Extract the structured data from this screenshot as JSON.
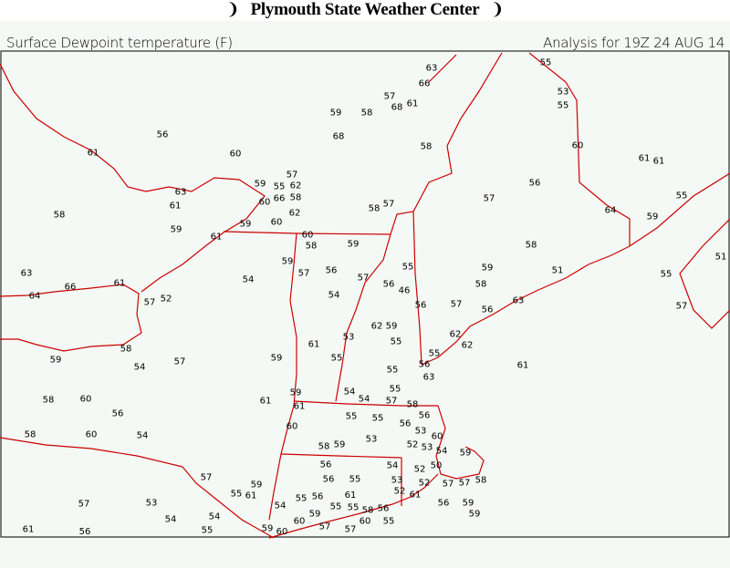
{
  "header": {
    "title": "Plymouth State Weather Center",
    "logo_icon": "tornado-icon"
  },
  "map": {
    "parameter_label": "Surface Dewpoint temperature (F)",
    "analysis_label": "Analysis for 19Z 24 AUG 14",
    "border_color": "#cc0000",
    "background_color": "#f4f9f5",
    "station_values": [
      63,
      66,
      57,
      68,
      61,
      59,
      58,
      68,
      58,
      56,
      60,
      61,
      55,
      53,
      55,
      60,
      61,
      61,
      56,
      57,
      64,
      59,
      55,
      57,
      62,
      59,
      63,
      61,
      60,
      66,
      58,
      55,
      62,
      60,
      58,
      57,
      59,
      59,
      61,
      58,
      60,
      58,
      59,
      59,
      57,
      56,
      55,
      57,
      54,
      56,
      46,
      54,
      59,
      58,
      58,
      51,
      55,
      51,
      57,
      56,
      57,
      56,
      63,
      62,
      62,
      62,
      59,
      53,
      55,
      61,
      55,
      55,
      56,
      63,
      55,
      61,
      63,
      64,
      66,
      61,
      57,
      52,
      58,
      59,
      54,
      57,
      59,
      59,
      61,
      61,
      58,
      60,
      56,
      58,
      60,
      54,
      60,
      54,
      54,
      57,
      55,
      58,
      55,
      55,
      56,
      56,
      53,
      60,
      53,
      52,
      53,
      54,
      59,
      50,
      52,
      54,
      58,
      59,
      56,
      56,
      55,
      55,
      56,
      54,
      55,
      55,
      59,
      60,
      57,
      58,
      60,
      56,
      53,
      52,
      61,
      52,
      57,
      57,
      58,
      56,
      59,
      59,
      55,
      57,
      61,
      59,
      60,
      57,
      55,
      61,
      59,
      54,
      55,
      57,
      53,
      54,
      61,
      56
    ]
  }
}
